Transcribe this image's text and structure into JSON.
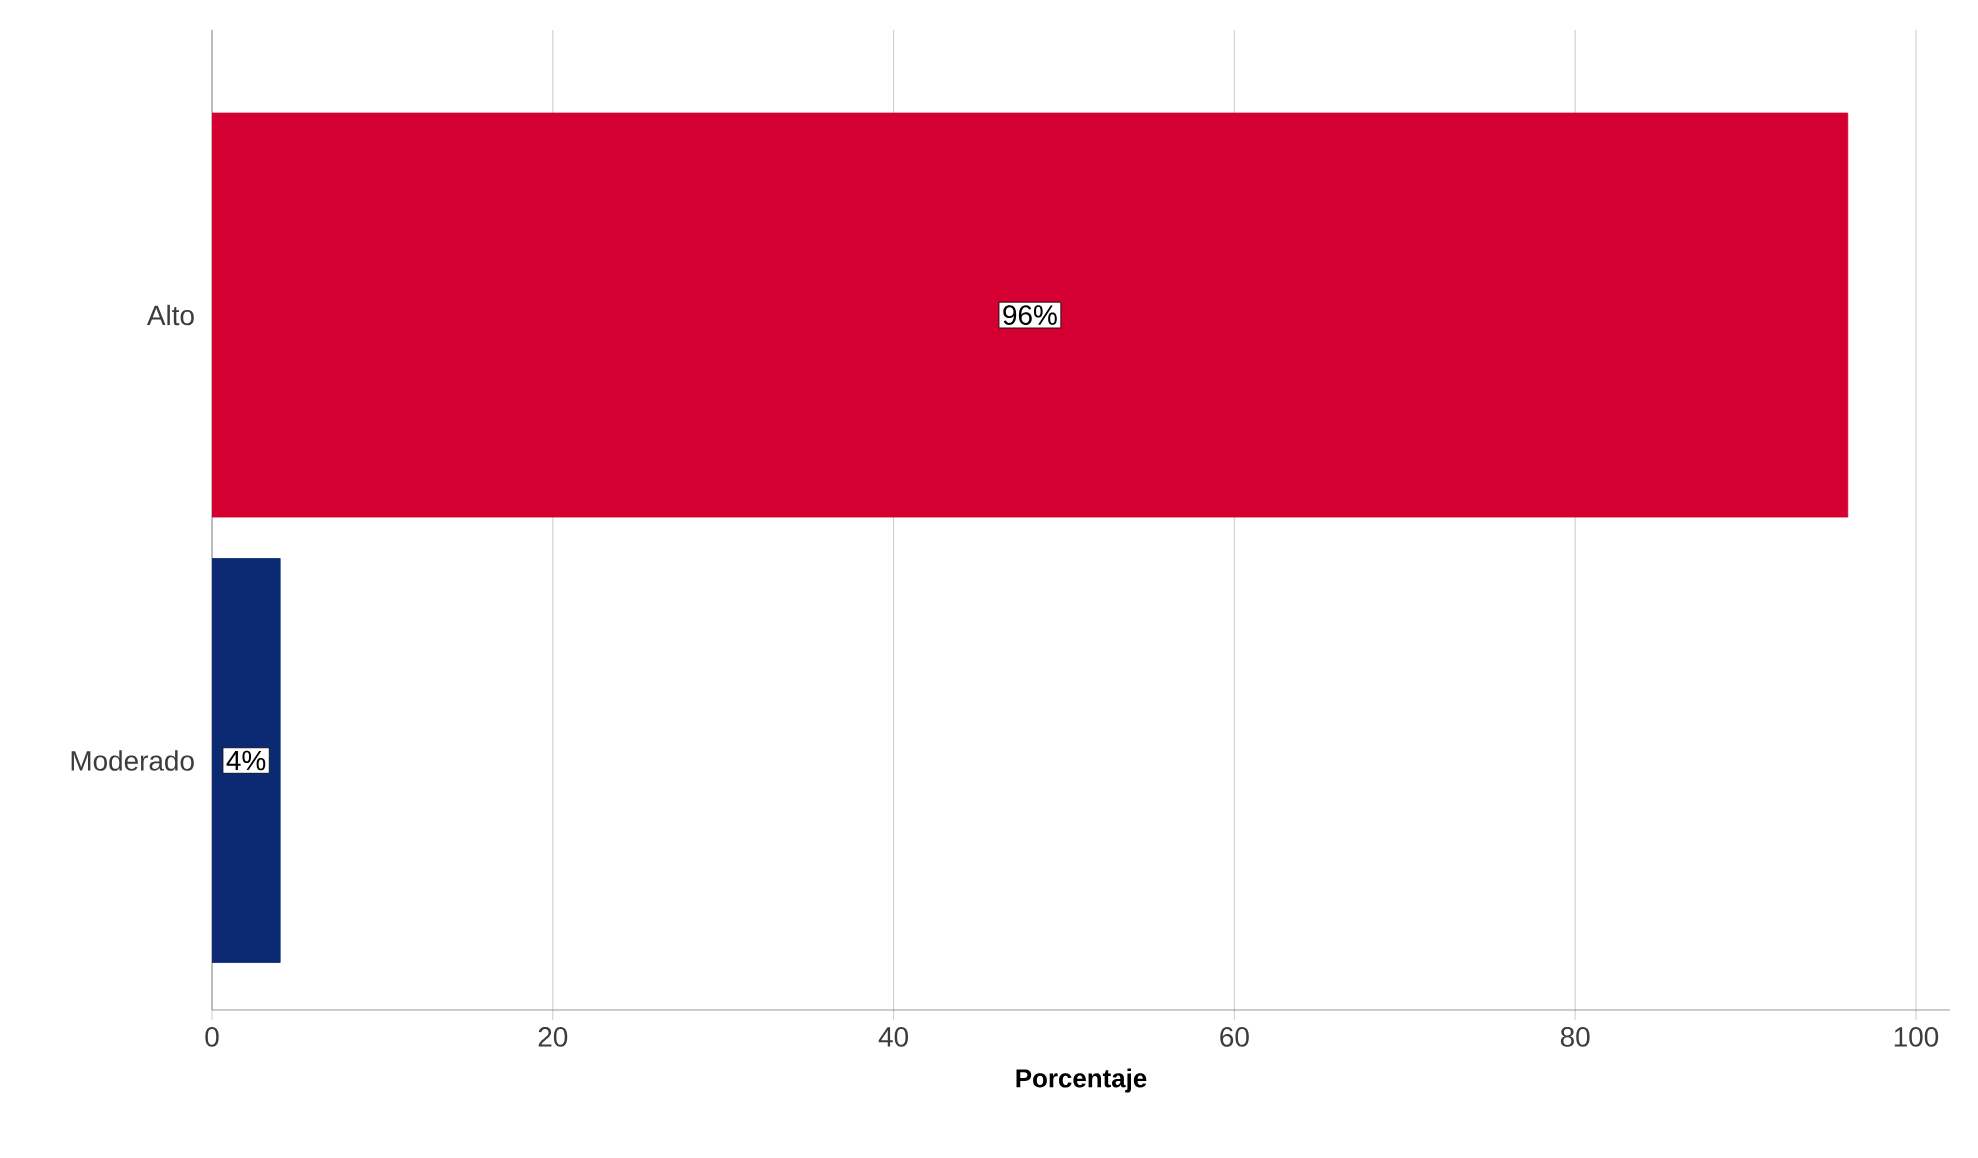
{
  "chart_data": {
    "type": "bar",
    "orientation": "horizontal",
    "categories": [
      "Alto",
      "Moderado"
    ],
    "values": [
      96,
      4
    ],
    "colors": [
      "#d50032",
      "#0c2a74"
    ],
    "value_labels": [
      "96%",
      "4%"
    ],
    "xlim": [
      0,
      102
    ],
    "xticks": [
      0,
      20,
      40,
      60,
      80,
      100
    ],
    "xlabel": "Porcentaje",
    "grid": "x"
  }
}
